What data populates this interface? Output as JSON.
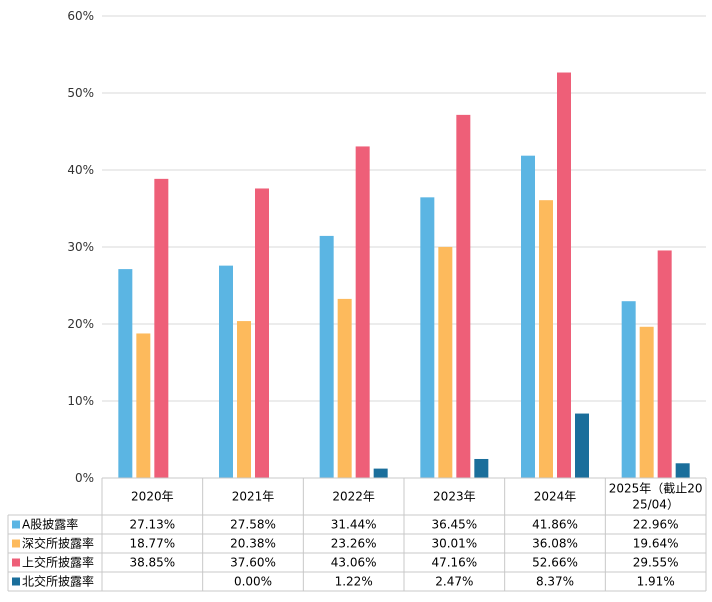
{
  "chart_data": {
    "type": "bar",
    "categories": [
      "2020年",
      "2021年",
      "2022年",
      "2023年",
      "2024年",
      "2025年（截止2025/04）"
    ],
    "category_lines": [
      [
        "2020年"
      ],
      [
        "2021年"
      ],
      [
        "2022年"
      ],
      [
        "2023年"
      ],
      [
        "2024年"
      ],
      [
        "2025年（截止20",
        "25/04）"
      ]
    ],
    "ylim": [
      0,
      60
    ],
    "yticks": [
      "0%",
      "10%",
      "20%",
      "30%",
      "40%",
      "50%",
      "60%"
    ],
    "grid": true,
    "legend": "data-table-left",
    "series": [
      {
        "name": "A股披露率",
        "color": "#5BB5E3",
        "values": [
          27.13,
          27.58,
          31.44,
          36.45,
          41.86,
          22.96
        ],
        "labels": [
          "27.13%",
          "27.58%",
          "31.44%",
          "36.45%",
          "41.86%",
          "22.96%"
        ]
      },
      {
        "name": "深交所披露率",
        "color": "#FDBA5C",
        "values": [
          18.77,
          20.38,
          23.26,
          30.01,
          36.08,
          19.64
        ],
        "labels": [
          "18.77%",
          "20.38%",
          "23.26%",
          "30.01%",
          "36.08%",
          "19.64%"
        ]
      },
      {
        "name": "上交所披露率",
        "color": "#EE5F78",
        "values": [
          38.85,
          37.6,
          43.06,
          47.16,
          52.66,
          29.55
        ],
        "labels": [
          "38.85%",
          "37.60%",
          "43.06%",
          "47.16%",
          "52.66%",
          "29.55%"
        ]
      },
      {
        "name": "北交所披露率",
        "color": "#1A6E9B",
        "values": [
          null,
          0.0,
          1.22,
          2.47,
          8.37,
          1.91
        ],
        "labels": [
          "",
          "0.00%",
          "1.22%",
          "2.47%",
          "8.37%",
          "1.91%"
        ]
      }
    ]
  }
}
